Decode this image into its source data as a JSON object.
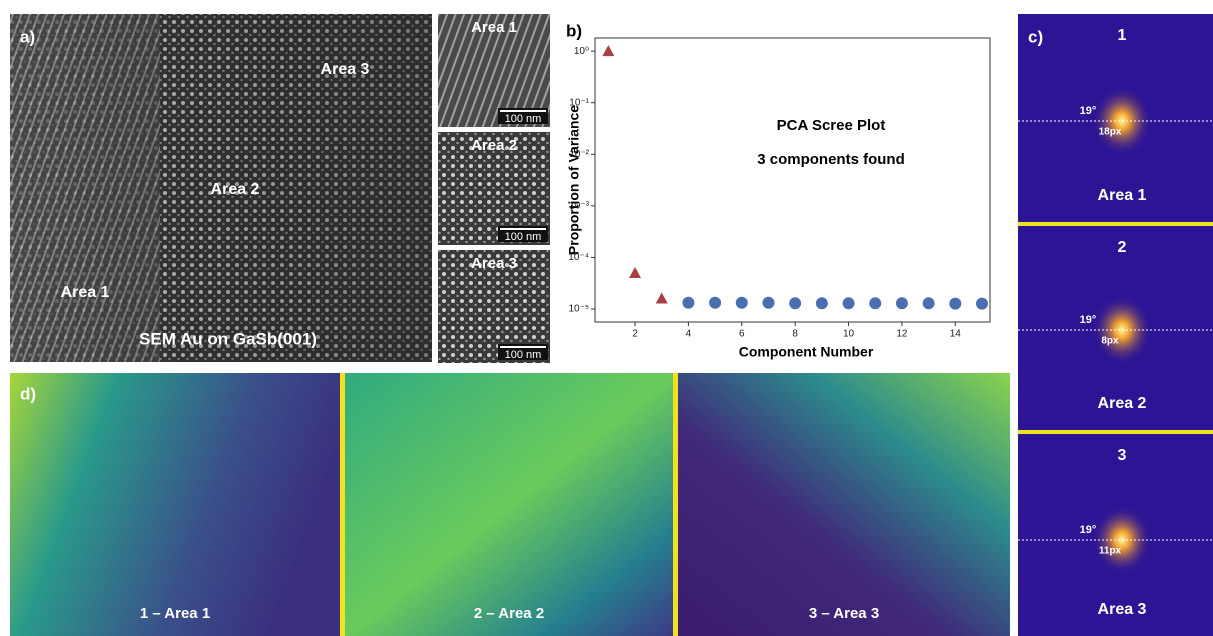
{
  "chart_data": {
    "type": "scatter",
    "title": "PCA Scree Plot",
    "subtitle": "3 components found",
    "panel_label": "b)",
    "xlabel": "Component Number",
    "ylabel": "Proportion of Variance",
    "log_y": true,
    "xlim": [
      0.5,
      15.3
    ],
    "xticks": [
      2,
      4,
      6,
      8,
      10,
      12,
      14
    ],
    "ylim": [
      5.6e-06,
      1.8
    ],
    "yticks": [
      {
        "value": 1e-05,
        "label": "10⁻⁵"
      },
      {
        "value": 0.0001,
        "label": "10⁻⁴"
      },
      {
        "value": 0.001,
        "label": "10⁻³"
      },
      {
        "value": 0.01,
        "label": "10⁻²"
      },
      {
        "value": 0.1,
        "label": "10⁻¹"
      },
      {
        "value": 1,
        "label": "10⁰"
      }
    ],
    "series": [
      {
        "marker": "triangle",
        "color": "#a83f45",
        "x": [
          1,
          2,
          3
        ],
        "values": [
          1.0,
          5e-05,
          1.6e-05
        ]
      },
      {
        "marker": "circle",
        "color": "#4a6fb0",
        "x": [
          4,
          5,
          6,
          7,
          8,
          9,
          10,
          11,
          12,
          13,
          14,
          15
        ],
        "values": [
          1.32e-05,
          1.32e-05,
          1.32e-05,
          1.32e-05,
          1.29e-05,
          1.29e-05,
          1.29e-05,
          1.29e-05,
          1.29e-05,
          1.29e-05,
          1.27e-05,
          1.27e-05
        ]
      }
    ]
  },
  "panel_a": {
    "label": "a)",
    "areas": [
      "Area 3",
      "Area 2",
      "Area 1"
    ],
    "caption": "SEM Au on GaSb(001)",
    "insets": [
      {
        "title": "Area 1",
        "scale": "100 nm"
      },
      {
        "title": "Area 2",
        "scale": "100 nm"
      },
      {
        "title": "Area 3",
        "scale": "100 nm"
      }
    ]
  },
  "panel_c": {
    "label": "c)",
    "ffts": [
      {
        "index": "1",
        "angle": "19°",
        "spacing": "18px",
        "area": "Area 1"
      },
      {
        "index": "2",
        "angle": "19°",
        "spacing": "8px",
        "area": "Area 2"
      },
      {
        "index": "3",
        "angle": "19°",
        "spacing": "11px",
        "area": "Area 3"
      }
    ]
  },
  "panel_d": {
    "label": "d)",
    "maps": [
      "1 – Area 1",
      "2 – Area 2",
      "3 – Area 3"
    ]
  }
}
